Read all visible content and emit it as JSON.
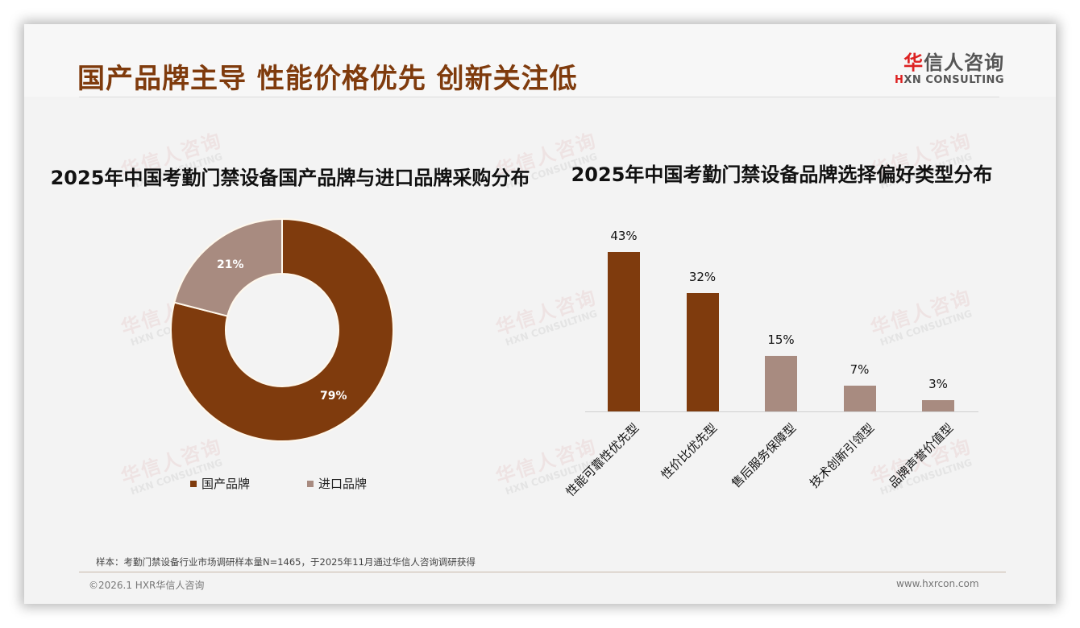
{
  "header": {
    "title": "国产品牌主导 性能价格优先 创新关注低",
    "logo_cn_first": "华",
    "logo_cn_rest": "信人咨询",
    "logo_en_first": "H",
    "logo_en_rest": "XN CONSULTING"
  },
  "watermark": {
    "cn": "华信人咨询",
    "en": "HXN CONSULTING"
  },
  "colors": {
    "primary": "#7f3b0d",
    "secondary": "#a88b80",
    "title": "#7f3b0d"
  },
  "chart_data": [
    {
      "type": "pie",
      "title": "2025年中国考勤门禁设备国产品牌与进口品牌采购分布",
      "categories": [
        "国产品牌",
        "进口品牌"
      ],
      "values": [
        79,
        21
      ],
      "labels": [
        "79%",
        "21%"
      ],
      "colors": [
        "#7f3b0d",
        "#a88b80"
      ],
      "donut": true,
      "legend_position": "bottom"
    },
    {
      "type": "bar",
      "title": "2025年中国考勤门禁设备品牌选择偏好类型分布",
      "categories": [
        "性能可靠性优先型",
        "性价比优先型",
        "售后服务保障型",
        "技术创新引领型",
        "品牌声誉价值型"
      ],
      "values": [
        43,
        32,
        15,
        7,
        3
      ],
      "labels": [
        "43%",
        "32%",
        "15%",
        "7%",
        "3%"
      ],
      "colors": [
        "#7f3b0d",
        "#7f3b0d",
        "#a88b80",
        "#a88b80",
        "#a88b80"
      ],
      "xlabel": "",
      "ylabel": "",
      "ylim": [
        0,
        50
      ],
      "grid": false
    }
  ],
  "footer": {
    "sample_note": "样本：考勤门禁设备行业市场调研样本量N=1465，于2025年11月通过华信人咨询调研获得",
    "copyright": "©2026.1 HXR华信人咨询",
    "website": "www.hxrcon.com"
  }
}
